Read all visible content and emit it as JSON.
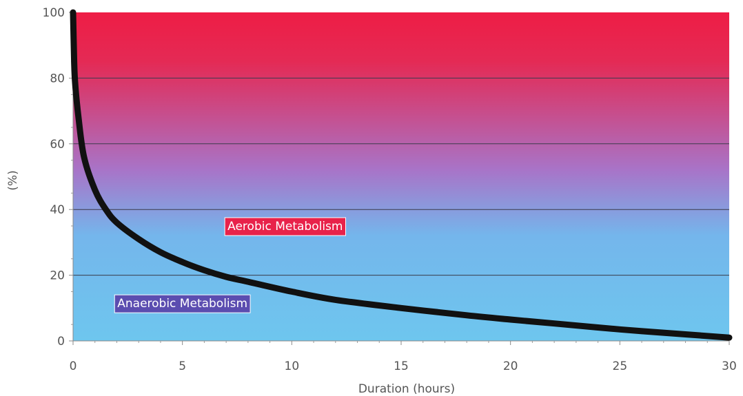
{
  "chart_data": {
    "type": "line",
    "title": "",
    "xlabel": "Duration (hours)",
    "ylabel": "(%)",
    "xlim": [
      0,
      30
    ],
    "ylim": [
      0,
      100
    ],
    "x_ticks": [
      "0",
      "5",
      "10",
      "15",
      "20",
      "25",
      "30"
    ],
    "y_ticks": [
      "0",
      "20",
      "40",
      "60",
      "80",
      "100"
    ],
    "grid": "horizontal",
    "background_gradient": {
      "top": "#ee1d45",
      "middle": "#a874c8",
      "bottom": "#6ec6ee"
    },
    "series": [
      {
        "color": "#111111",
        "x": [
          0,
          0.05,
          0.1,
          0.25,
          0.5,
          1,
          1.5,
          2,
          3,
          4,
          5,
          6,
          7,
          8,
          10,
          12,
          15,
          18,
          20,
          22,
          25,
          28,
          30
        ],
        "y": [
          100,
          85,
          78,
          68,
          56,
          46,
          40,
          36,
          31,
          27,
          24,
          21.5,
          19.5,
          18,
          15,
          12.5,
          10,
          7.8,
          6.5,
          5.3,
          3.5,
          2,
          1
        ]
      }
    ],
    "annotations": [
      {
        "text": "Aerobic Metabolism",
        "x": 9.7,
        "y": 35,
        "box_color": "#e8224a"
      },
      {
        "text": "Anaerobic Metabolism",
        "x": 5,
        "y": 11.5,
        "box_color": "#5b4db0"
      }
    ]
  }
}
